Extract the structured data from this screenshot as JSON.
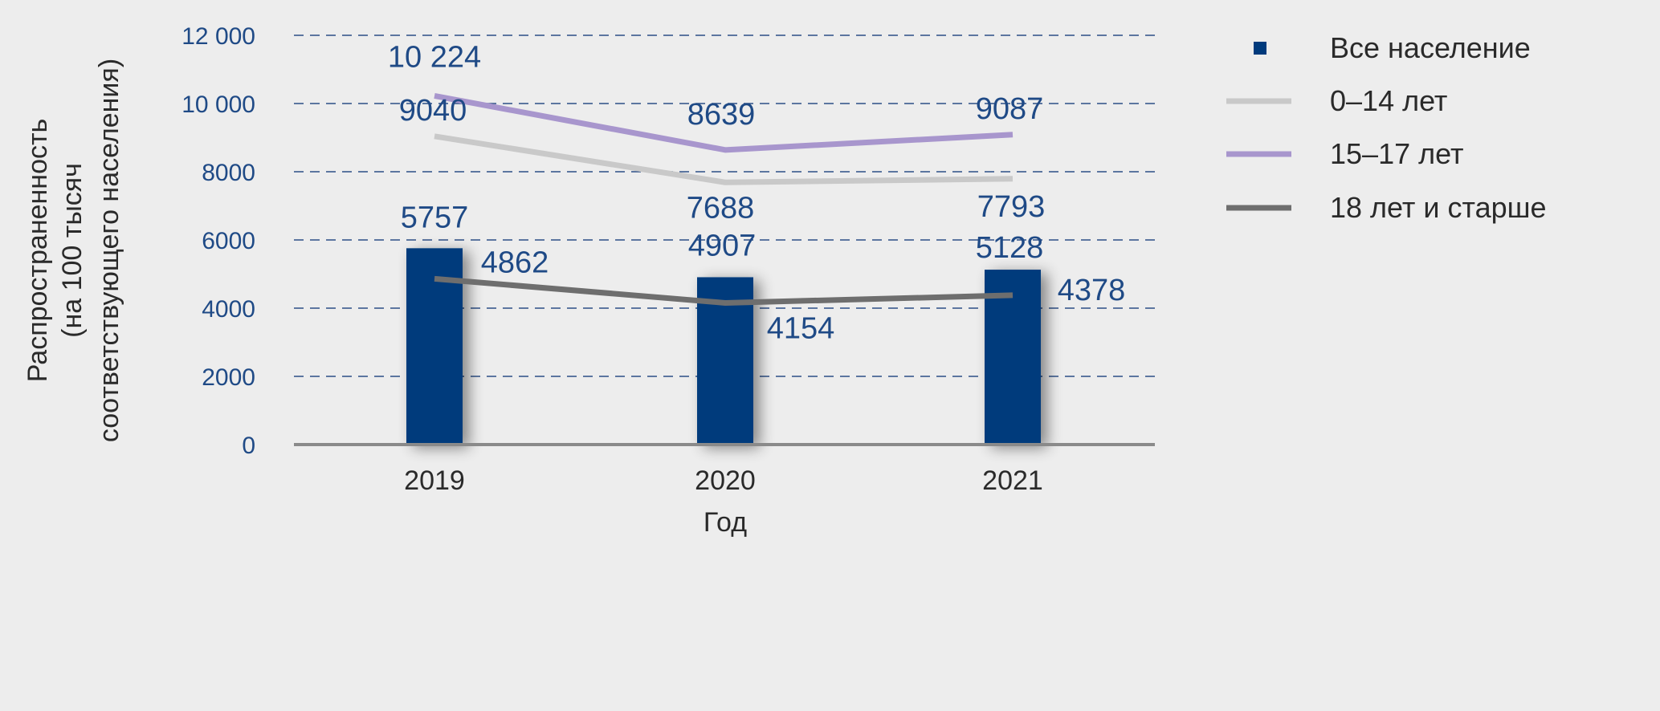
{
  "chart_data": {
    "type": "bar",
    "categories": [
      "2019",
      "2020",
      "2021"
    ],
    "xlabel": "Год",
    "ylabel": [
      "Распространенность",
      "(на 100 тысяч",
      "соответствующего населения)"
    ],
    "ylim": [
      0,
      12000
    ],
    "yticks": [
      0,
      2000,
      4000,
      6000,
      8000,
      10000,
      12000
    ],
    "ytick_labels": [
      "0",
      "2000",
      "4000",
      "6000",
      "8000",
      "10 000",
      "12 000"
    ],
    "grid": true,
    "legend_position": "right",
    "series": [
      {
        "name": "Все население",
        "kind": "bar",
        "color": "#003a7c",
        "values": [
          5757,
          4907,
          5128
        ],
        "labels": [
          "5757",
          "4907",
          "5128"
        ]
      },
      {
        "name": "0–14 лет",
        "kind": "line",
        "color": "#c9c9c9",
        "values": [
          9040,
          7688,
          7793
        ],
        "labels": [
          "9040",
          "7688",
          "7793"
        ]
      },
      {
        "name": "15–17 лет",
        "kind": "line",
        "color": "#a896cd",
        "values": [
          10224,
          8639,
          9087
        ],
        "labels": [
          "10 224",
          "8639",
          "9087"
        ]
      },
      {
        "name": "18 лет и старше",
        "kind": "line",
        "color": "#6e6e6e",
        "values": [
          4862,
          4154,
          4378
        ],
        "labels": [
          "4862",
          "4154",
          "4378"
        ]
      }
    ]
  }
}
